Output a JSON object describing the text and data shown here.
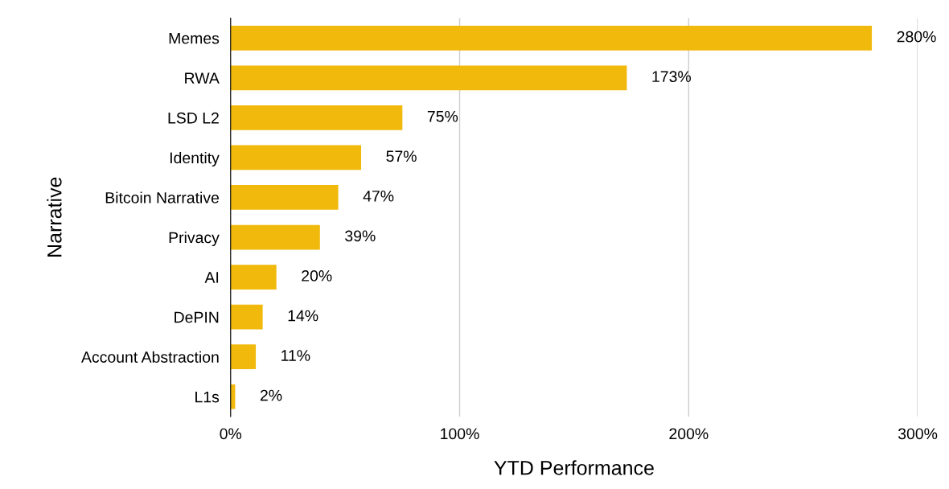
{
  "chart_data": {
    "type": "bar",
    "orientation": "horizontal",
    "xlabel": "YTD Performance",
    "ylabel": "Narrative",
    "categories": [
      "Memes",
      "RWA",
      "LSD L2",
      "Identity",
      "Bitcoin Narrative",
      "Privacy",
      "AI",
      "DePIN",
      "Account Abstraction",
      "L1s"
    ],
    "values": [
      280,
      173,
      75,
      57,
      47,
      39,
      20,
      14,
      11,
      2
    ],
    "value_labels": [
      "280%",
      "173%",
      "75%",
      "57%",
      "47%",
      "39%",
      "20%",
      "14%",
      "11%",
      "2%"
    ],
    "color": "#f0b90b",
    "xlim": [
      0,
      300
    ],
    "xticks": [
      {
        "value": 0,
        "label": "0%"
      },
      {
        "value": 100,
        "label": "100%"
      },
      {
        "value": 200,
        "label": "200%"
      },
      {
        "value": 300,
        "label": "300%"
      }
    ],
    "grid": "x",
    "legend": false
  }
}
